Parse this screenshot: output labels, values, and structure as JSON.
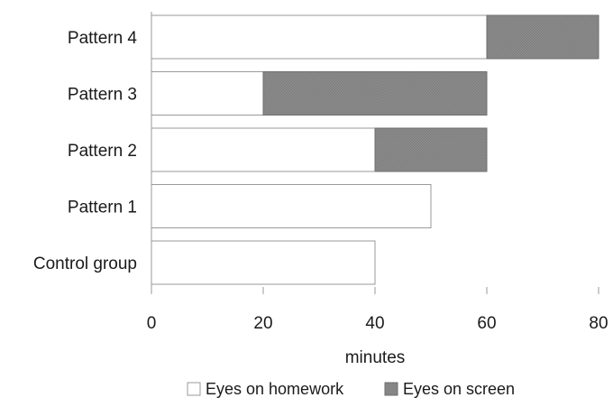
{
  "chart_data": {
    "type": "bar",
    "orientation": "horizontal",
    "stacked": true,
    "categories": [
      "Pattern 4",
      "Pattern 3",
      "Pattern 2",
      "Pattern 1",
      "Control group"
    ],
    "series": [
      {
        "name": "Eyes on homework",
        "values": [
          60,
          20,
          40,
          50,
          40
        ],
        "color": "#ffffff"
      },
      {
        "name": "Eyes on screen",
        "values": [
          20,
          40,
          20,
          0,
          0
        ],
        "color": "#8c8c8c"
      }
    ],
    "xlabel": "minutes",
    "ylabel": "",
    "xlim": [
      0,
      80
    ],
    "xticks": [
      "0",
      "20",
      "40",
      "60",
      "80"
    ],
    "grid": false,
    "legend_position": "bottom"
  }
}
